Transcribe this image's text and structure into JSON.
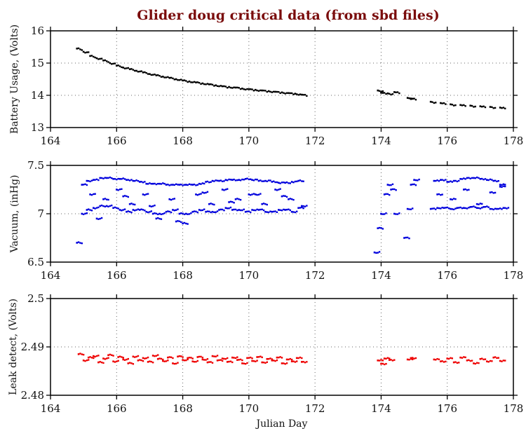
{
  "chart_data": {
    "type": "scatter",
    "title": "Glider doug critical data (from sbd files)",
    "title_color": "#7a0c0c",
    "xlabel": "Julian Day",
    "xlim": [
      164,
      178
    ],
    "xticks": [
      164,
      166,
      168,
      170,
      172,
      174,
      176,
      178
    ],
    "grid": true,
    "panels": [
      {
        "ylabel": "Battery Usage, (Volts)",
        "ylim": [
          13,
          16
        ],
        "yticks": [
          13,
          14,
          15,
          16
        ],
        "ytick_labels": [
          "13",
          "14",
          "15",
          "16"
        ],
        "color": "#000000",
        "x": [
          164.8,
          165.0,
          165.2,
          165.4,
          165.6,
          165.8,
          166.0,
          166.2,
          166.4,
          166.6,
          166.8,
          167.0,
          167.2,
          167.4,
          167.6,
          167.8,
          168.0,
          168.2,
          168.4,
          168.6,
          168.8,
          169.0,
          169.2,
          169.4,
          169.6,
          169.8,
          170.0,
          170.2,
          170.4,
          170.6,
          170.8,
          171.0,
          171.2,
          171.4,
          171.6,
          173.9,
          174.0,
          174.2,
          174.4,
          174.8,
          174.9,
          175.5,
          175.8,
          176.1,
          176.4,
          176.7,
          177.0,
          177.3,
          177.6
        ],
        "y": [
          15.45,
          15.35,
          15.22,
          15.15,
          15.08,
          15.0,
          14.92,
          14.86,
          14.81,
          14.76,
          14.71,
          14.66,
          14.62,
          14.58,
          14.54,
          14.5,
          14.46,
          14.43,
          14.4,
          14.37,
          14.34,
          14.31,
          14.28,
          14.26,
          14.24,
          14.21,
          14.19,
          14.17,
          14.15,
          14.13,
          14.11,
          14.09,
          14.07,
          14.05,
          14.02,
          14.15,
          14.08,
          14.06,
          14.1,
          13.92,
          13.9,
          13.8,
          13.76,
          13.72,
          13.7,
          13.68,
          13.66,
          13.64,
          13.62
        ]
      },
      {
        "ylabel": "Vacuum, (inHg)",
        "ylim": [
          6.5,
          7.5
        ],
        "yticks": [
          6.5,
          7,
          7.5
        ],
        "ytick_labels": [
          "6.5",
          "7",
          "7.5"
        ],
        "color": "#0000dd",
        "x": [
          164.8,
          164.95,
          165.1,
          165.3,
          165.5,
          165.7,
          165.9,
          166.1,
          166.3,
          166.5,
          166.7,
          166.9,
          167.1,
          167.3,
          167.5,
          167.7,
          167.9,
          168.1,
          168.3,
          168.5,
          168.7,
          168.9,
          169.1,
          169.3,
          169.5,
          169.7,
          169.9,
          170.1,
          170.3,
          170.5,
          170.7,
          170.9,
          171.1,
          171.3,
          171.5,
          171.6,
          164.95,
          165.1,
          165.3,
          165.5,
          165.7,
          165.9,
          166.1,
          166.3,
          166.5,
          166.7,
          166.9,
          167.1,
          167.3,
          167.5,
          167.7,
          167.9,
          168.1,
          168.3,
          168.5,
          168.7,
          168.9,
          169.1,
          169.3,
          169.5,
          169.7,
          169.9,
          170.1,
          170.3,
          170.5,
          170.7,
          170.9,
          171.1,
          171.3,
          171.5,
          165.2,
          165.6,
          166.0,
          166.4,
          166.8,
          167.2,
          167.6,
          168.0,
          168.4,
          168.8,
          169.2,
          169.6,
          170.0,
          170.4,
          170.8,
          171.2,
          165.4,
          166.2,
          167.0,
          167.8,
          168.6,
          169.4,
          170.2,
          171.0,
          173.8,
          173.9,
          174.0,
          174.1,
          174.2,
          174.3,
          174.4,
          174.7,
          174.8,
          174.9,
          175.0,
          175.5,
          175.7,
          175.9,
          176.1,
          176.3,
          176.5,
          176.7,
          176.9,
          177.1,
          177.3,
          177.5,
          177.7,
          175.6,
          175.8,
          176.0,
          176.2,
          176.4,
          176.6,
          176.8,
          177.0,
          177.2,
          177.4,
          177.6,
          175.7,
          176.1,
          176.5,
          176.9,
          177.3,
          177.6
        ],
        "y": [
          6.7,
          7.0,
          7.04,
          7.06,
          7.08,
          7.08,
          7.06,
          7.04,
          7.02,
          7.04,
          7.04,
          7.02,
          7.0,
          7.0,
          7.02,
          7.04,
          7.0,
          7.0,
          7.02,
          7.04,
          7.02,
          7.02,
          7.04,
          7.06,
          7.04,
          7.04,
          7.02,
          7.04,
          7.04,
          7.02,
          7.02,
          7.04,
          7.04,
          7.02,
          7.06,
          7.08,
          7.3,
          7.34,
          7.35,
          7.37,
          7.37,
          7.36,
          7.36,
          7.35,
          7.34,
          7.33,
          7.31,
          7.31,
          7.31,
          7.3,
          7.3,
          7.3,
          7.3,
          7.3,
          7.31,
          7.33,
          7.34,
          7.34,
          7.35,
          7.35,
          7.35,
          7.36,
          7.35,
          7.34,
          7.34,
          7.33,
          7.32,
          7.32,
          7.33,
          7.34,
          7.2,
          7.15,
          7.25,
          7.1,
          7.2,
          6.95,
          7.15,
          6.9,
          7.2,
          7.1,
          7.25,
          7.15,
          7.2,
          7.1,
          7.25,
          7.15,
          6.95,
          7.18,
          7.08,
          6.92,
          7.22,
          7.12,
          7.2,
          7.18,
          6.6,
          6.85,
          7.0,
          7.2,
          7.3,
          7.25,
          7.0,
          6.75,
          7.05,
          7.3,
          7.35,
          7.05,
          7.06,
          7.06,
          7.05,
          7.06,
          7.06,
          7.07,
          7.06,
          7.07,
          7.05,
          7.05,
          7.06,
          7.34,
          7.35,
          7.33,
          7.34,
          7.36,
          7.37,
          7.37,
          7.36,
          7.35,
          7.34,
          7.3,
          7.2,
          7.15,
          7.25,
          7.1,
          7.22,
          7.28
        ]
      },
      {
        "ylabel": "Leak detect, (Volts)",
        "ylim": [
          2.48,
          2.5
        ],
        "yticks": [
          2.48,
          2.49,
          2.5
        ],
        "ytick_labels": [
          "2.48",
          "2.49",
          "2.5"
        ],
        "color": "#ee0000",
        "x": [
          164.85,
          165.0,
          165.15,
          165.3,
          165.45,
          165.6,
          165.75,
          165.9,
          166.05,
          166.2,
          166.35,
          166.5,
          166.65,
          166.8,
          166.95,
          167.1,
          167.25,
          167.4,
          167.55,
          167.7,
          167.85,
          168.0,
          168.15,
          168.3,
          168.45,
          168.6,
          168.75,
          168.9,
          169.05,
          169.2,
          169.35,
          169.5,
          169.65,
          169.8,
          169.95,
          170.1,
          170.25,
          170.4,
          170.55,
          170.7,
          170.85,
          171.0,
          171.15,
          171.3,
          171.45,
          171.6,
          173.9,
          174.0,
          174.1,
          174.25,
          174.8,
          174.9,
          175.6,
          175.8,
          176.0,
          176.2,
          176.4,
          176.6,
          176.8,
          177.0,
          177.2,
          177.4,
          177.6
        ],
        "y": [
          2.4885,
          2.4872,
          2.4878,
          2.4881,
          2.4868,
          2.4876,
          2.4883,
          2.487,
          2.4879,
          2.4874,
          2.4866,
          2.488,
          2.4872,
          2.4877,
          2.4869,
          2.4882,
          2.4875,
          2.4871,
          2.4878,
          2.4866,
          2.488,
          2.4873,
          2.4877,
          2.487,
          2.4879,
          2.4874,
          2.4868,
          2.4881,
          2.4872,
          2.4876,
          2.4869,
          2.4878,
          2.4873,
          2.4866,
          2.4877,
          2.4871,
          2.4879,
          2.4868,
          2.4875,
          2.4872,
          2.4878,
          2.4866,
          2.4874,
          2.487,
          2.4877,
          2.4869,
          2.4872,
          2.4865,
          2.4876,
          2.4873,
          2.4874,
          2.4877,
          2.4874,
          2.487,
          2.4876,
          2.4868,
          2.4878,
          2.4872,
          2.4866,
          2.4875,
          2.487,
          2.4878,
          2.4871
        ]
      }
    ]
  }
}
